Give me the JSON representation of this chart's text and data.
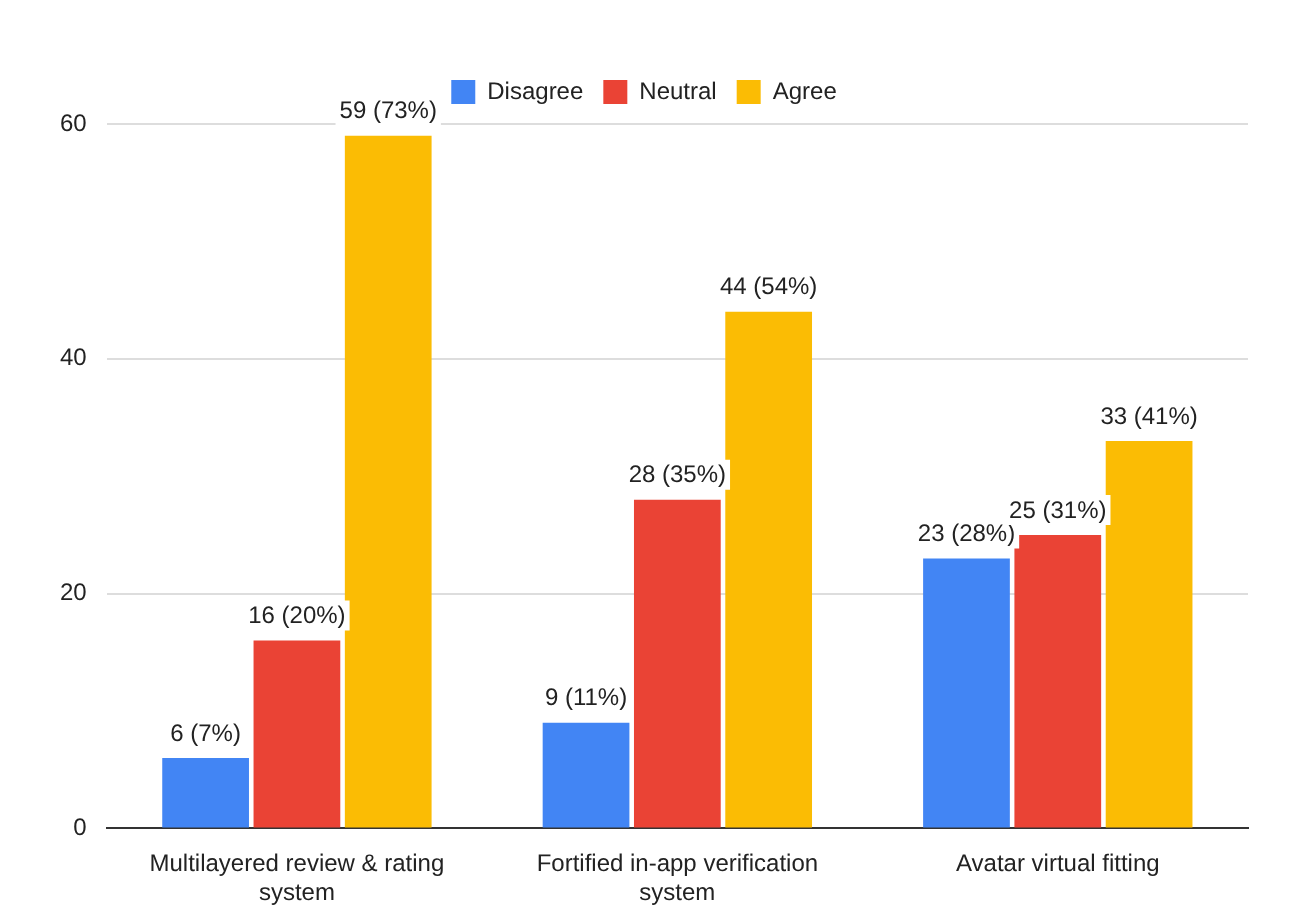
{
  "chart_data": {
    "type": "bar",
    "categories": [
      "Multilayered review & rating system",
      "Fortified in-app verification system",
      "Avatar virtual fitting"
    ],
    "series": [
      {
        "name": "Disagree",
        "color": "#4285f4",
        "values": [
          6,
          9,
          23
        ],
        "value_labels": [
          "6 (7%)",
          "9 (11%)",
          "23 (28%)"
        ]
      },
      {
        "name": "Neutral",
        "color": "#ea4335",
        "values": [
          16,
          28,
          25
        ],
        "value_labels": [
          "16 (20%)",
          "28 (35%)",
          "25 (31%)"
        ]
      },
      {
        "name": "Agree",
        "color": "#fbbc04",
        "values": [
          59,
          44,
          33
        ],
        "value_labels": [
          "59 (73%)",
          "44 (54%)",
          "33 (41%)"
        ]
      }
    ],
    "ylim": [
      0,
      60
    ],
    "yticks": [
      0,
      20,
      40,
      60
    ],
    "grid": "y",
    "legend": "top"
  }
}
